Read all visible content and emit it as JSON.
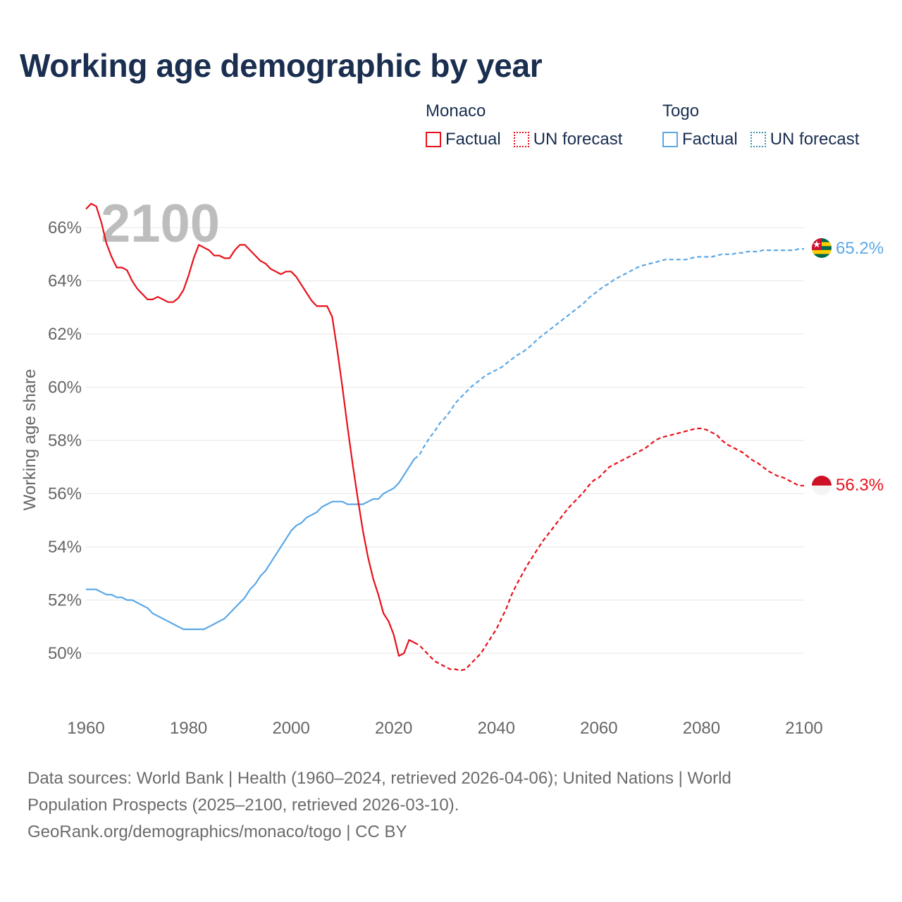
{
  "chart_data": {
    "type": "line",
    "title": "Working age demographic by year",
    "ylabel": "Working age share",
    "xlabel": "",
    "year_label": "2100",
    "xlim": [
      1960,
      2100
    ],
    "ylim": [
      48,
      67.5
    ],
    "x_ticks": [
      1960,
      1980,
      2000,
      2020,
      2040,
      2060,
      2080,
      2100
    ],
    "x_tick_labels": [
      "1960",
      "1980",
      "2000",
      "2020",
      "2040",
      "2060",
      "2080",
      "2100"
    ],
    "y_ticks": [
      50,
      52,
      54,
      56,
      58,
      60,
      62,
      64,
      66
    ],
    "y_tick_labels": [
      "50%",
      "52%",
      "54%",
      "56%",
      "58%",
      "60%",
      "62%",
      "64%",
      "66%"
    ],
    "legend": {
      "groups": [
        {
          "name": "Monaco",
          "factual_label": "Factual",
          "forecast_label": "UN forecast",
          "color": "#e8101a"
        },
        {
          "name": "Togo",
          "factual_label": "Factual",
          "forecast_label": "UN forecast",
          "color": "#5ba8e6"
        }
      ]
    },
    "series": [
      {
        "name": "Monaco",
        "color": "#e8101a",
        "end_label": "56.3%",
        "factual": {
          "x": [
            1960,
            1961,
            1962,
            1963,
            1964,
            1965,
            1966,
            1967,
            1968,
            1969,
            1970,
            1971,
            1972,
            1973,
            1974,
            1975,
            1976,
            1977,
            1978,
            1979,
            1980,
            1981,
            1982,
            1983,
            1984,
            1985,
            1986,
            1987,
            1988,
            1989,
            1990,
            1991,
            1992,
            1993,
            1994,
            1995,
            1996,
            1997,
            1998,
            1999,
            2000,
            2001,
            2002,
            2003,
            2004,
            2005,
            2006,
            2007,
            2008,
            2009,
            2010,
            2011,
            2012,
            2013,
            2014,
            2015,
            2016,
            2017,
            2018,
            2019,
            2020,
            2021,
            2022,
            2023,
            2024
          ],
          "y": [
            66.7,
            66.9,
            66.8,
            66.2,
            65.4,
            64.9,
            64.5,
            64.5,
            64.4,
            64.0,
            63.7,
            63.5,
            63.3,
            63.3,
            63.4,
            63.3,
            63.2,
            63.2,
            63.35,
            63.65,
            64.2,
            64.85,
            65.35,
            65.25,
            65.15,
            64.95,
            64.95,
            64.85,
            64.85,
            65.15,
            65.35,
            65.35,
            65.15,
            64.95,
            64.75,
            64.65,
            64.45,
            64.35,
            64.25,
            64.35,
            64.35,
            64.15,
            63.85,
            63.55,
            63.25,
            63.05,
            63.05,
            63.05,
            62.65,
            61.4,
            60.0,
            58.5,
            57.1,
            55.8,
            54.6,
            53.6,
            52.8,
            52.2,
            51.5,
            51.2,
            50.7,
            49.9,
            50.0,
            50.5,
            50.4
          ]
        },
        "forecast": {
          "x": [
            2024,
            2025,
            2026,
            2027,
            2028,
            2029,
            2030,
            2031,
            2032,
            2033,
            2034,
            2035,
            2036,
            2037,
            2038,
            2039,
            2040,
            2041,
            2042,
            2043,
            2044,
            2045,
            2046,
            2047,
            2048,
            2049,
            2050,
            2051,
            2052,
            2053,
            2054,
            2055,
            2056,
            2057,
            2058,
            2059,
            2060,
            2061,
            2062,
            2063,
            2064,
            2065,
            2066,
            2067,
            2068,
            2069,
            2070,
            2071,
            2072,
            2073,
            2074,
            2075,
            2076,
            2077,
            2078,
            2079,
            2080,
            2081,
            2082,
            2083,
            2084,
            2085,
            2086,
            2087,
            2088,
            2089,
            2090,
            2091,
            2092,
            2093,
            2094,
            2095,
            2096,
            2097,
            2098,
            2099,
            2100
          ],
          "y": [
            50.4,
            50.3,
            50.1,
            49.9,
            49.7,
            49.6,
            49.5,
            49.4,
            49.4,
            49.35,
            49.4,
            49.6,
            49.8,
            50.0,
            50.3,
            50.6,
            50.9,
            51.3,
            51.7,
            52.2,
            52.6,
            52.95,
            53.3,
            53.6,
            53.9,
            54.2,
            54.45,
            54.7,
            54.95,
            55.2,
            55.45,
            55.65,
            55.85,
            56.05,
            56.3,
            56.5,
            56.6,
            56.8,
            57.0,
            57.1,
            57.2,
            57.3,
            57.4,
            57.5,
            57.6,
            57.7,
            57.85,
            58.0,
            58.1,
            58.15,
            58.2,
            58.25,
            58.3,
            58.35,
            58.4,
            58.45,
            58.45,
            58.4,
            58.3,
            58.2,
            58.0,
            57.85,
            57.75,
            57.65,
            57.55,
            57.4,
            57.25,
            57.15,
            57.0,
            56.85,
            56.75,
            56.65,
            56.6,
            56.5,
            56.4,
            56.3,
            56.3
          ]
        }
      },
      {
        "name": "Togo",
        "color": "#5ba8e6",
        "end_label": "65.2%",
        "factual": {
          "x": [
            1960,
            1961,
            1962,
            1963,
            1964,
            1965,
            1966,
            1967,
            1968,
            1969,
            1970,
            1971,
            1972,
            1973,
            1974,
            1975,
            1976,
            1977,
            1978,
            1979,
            1980,
            1981,
            1982,
            1983,
            1984,
            1985,
            1986,
            1987,
            1988,
            1989,
            1990,
            1991,
            1992,
            1993,
            1994,
            1995,
            1996,
            1997,
            1998,
            1999,
            2000,
            2001,
            2002,
            2003,
            2004,
            2005,
            2006,
            2007,
            2008,
            2009,
            2010,
            2011,
            2012,
            2013,
            2014,
            2015,
            2016,
            2017,
            2018,
            2019,
            2020,
            2021,
            2022,
            2023,
            2024
          ],
          "y": [
            52.4,
            52.4,
            52.4,
            52.3,
            52.2,
            52.2,
            52.1,
            52.1,
            52.0,
            52.0,
            51.9,
            51.8,
            51.7,
            51.5,
            51.4,
            51.3,
            51.2,
            51.1,
            51.0,
            50.9,
            50.9,
            50.9,
            50.9,
            50.9,
            51.0,
            51.1,
            51.2,
            51.3,
            51.5,
            51.7,
            51.9,
            52.1,
            52.4,
            52.6,
            52.9,
            53.1,
            53.4,
            53.7,
            54.0,
            54.3,
            54.6,
            54.8,
            54.9,
            55.1,
            55.2,
            55.3,
            55.5,
            55.6,
            55.7,
            55.7,
            55.7,
            55.6,
            55.6,
            55.6,
            55.6,
            55.7,
            55.8,
            55.8,
            56.0,
            56.1,
            56.2,
            56.4,
            56.7,
            57.0,
            57.3
          ]
        },
        "forecast": {
          "x": [
            2024,
            2025,
            2026,
            2027,
            2028,
            2029,
            2030,
            2031,
            2032,
            2033,
            2034,
            2035,
            2036,
            2037,
            2038,
            2039,
            2040,
            2041,
            2042,
            2043,
            2044,
            2045,
            2046,
            2047,
            2048,
            2049,
            2050,
            2051,
            2052,
            2053,
            2054,
            2055,
            2056,
            2057,
            2058,
            2059,
            2060,
            2061,
            2062,
            2063,
            2064,
            2065,
            2066,
            2067,
            2068,
            2069,
            2070,
            2071,
            2072,
            2073,
            2074,
            2075,
            2076,
            2077,
            2078,
            2079,
            2080,
            2081,
            2082,
            2083,
            2084,
            2085,
            2086,
            2087,
            2088,
            2089,
            2090,
            2091,
            2092,
            2093,
            2094,
            2095,
            2096,
            2097,
            2098,
            2099,
            2100
          ],
          "y": [
            57.3,
            57.45,
            57.8,
            58.1,
            58.35,
            58.65,
            58.85,
            59.1,
            59.4,
            59.6,
            59.8,
            60.0,
            60.15,
            60.3,
            60.45,
            60.55,
            60.65,
            60.75,
            60.9,
            61.05,
            61.2,
            61.3,
            61.45,
            61.6,
            61.8,
            61.95,
            62.1,
            62.25,
            62.4,
            62.55,
            62.7,
            62.85,
            63.0,
            63.15,
            63.35,
            63.5,
            63.65,
            63.8,
            63.9,
            64.05,
            64.15,
            64.25,
            64.35,
            64.45,
            64.55,
            64.6,
            64.65,
            64.7,
            64.75,
            64.8,
            64.8,
            64.8,
            64.8,
            64.8,
            64.85,
            64.9,
            64.9,
            64.9,
            64.9,
            64.95,
            65.0,
            65.0,
            65.0,
            65.05,
            65.05,
            65.1,
            65.1,
            65.1,
            65.15,
            65.15,
            65.15,
            65.15,
            65.15,
            65.15,
            65.15,
            65.2,
            65.2
          ]
        }
      }
    ]
  },
  "footer": {
    "source_text": "Data sources: World Bank | Health (1960–2024, retrieved 2026-04-06); United Nations | World Population Prospects (2025–2100, retrieved 2026-03-10).",
    "credit_text": "GeoRank.org/demographics/monaco/togo | CC BY"
  },
  "colors": {
    "title": "#1a2e4f",
    "axis_text": "#666666",
    "grid": "#e6e6e6",
    "year_watermark": "#bdbdbd",
    "togo_forecast_swatch": "#3a8fa8"
  },
  "flags": {
    "monaco": {
      "name": "monaco-flag-icon"
    },
    "togo": {
      "name": "togo-flag-icon"
    }
  }
}
